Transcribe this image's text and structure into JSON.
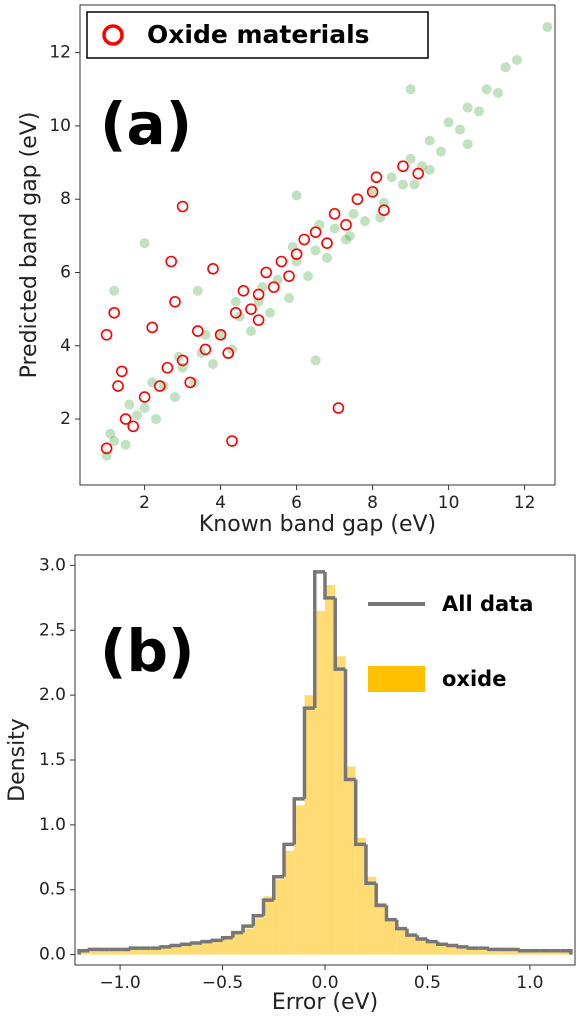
{
  "chart_data": [
    {
      "type": "scatter",
      "annotation": "(a)",
      "xlabel": "Known band gap (eV)",
      "ylabel": "Predicted band gap (eV)",
      "xlim": [
        0.3,
        12.8
      ],
      "ylim": [
        0.2,
        13.3
      ],
      "xticks": [
        2,
        4,
        6,
        8,
        10,
        12
      ],
      "yticks": [
        2,
        4,
        6,
        8,
        10,
        12
      ],
      "legend": "upper left",
      "series": [
        {
          "color": "#2e9e2e",
          "marker": "filled",
          "x": [
            1.0,
            1.2,
            1.5,
            1.8,
            2.0,
            2.3,
            2.5,
            2.8,
            3.0,
            3.3,
            3.5,
            3.8,
            4.0,
            4.3,
            4.5,
            4.8,
            5.0,
            5.3,
            5.5,
            5.8,
            6.0,
            6.3,
            6.5,
            6.8,
            7.0,
            7.3,
            7.5,
            7.8,
            8.0,
            8.3,
            8.5,
            8.8,
            9.0,
            9.3,
            9.5,
            9.8,
            10.0,
            10.3,
            10.5,
            10.8,
            11.0,
            11.3,
            11.5,
            11.8,
            12.6,
            1.1,
            1.6,
            2.2,
            2.9,
            3.6,
            4.4,
            5.1,
            5.9,
            6.6,
            7.4,
            8.2,
            9.1,
            2.0,
            3.4,
            9.0,
            9.5,
            10.5,
            6.5,
            6.0,
            1.2
          ],
          "y": [
            1.0,
            1.4,
            1.3,
            2.1,
            2.3,
            2.0,
            2.9,
            2.6,
            3.4,
            3.0,
            3.8,
            3.5,
            4.3,
            3.9,
            4.8,
            4.4,
            5.2,
            4.9,
            5.8,
            5.3,
            6.3,
            5.9,
            6.6,
            6.4,
            7.2,
            6.9,
            7.6,
            7.4,
            8.2,
            7.9,
            8.6,
            8.4,
            9.1,
            8.9,
            9.6,
            9.3,
            10.1,
            9.9,
            10.5,
            10.4,
            11.0,
            10.9,
            11.6,
            11.8,
            12.7,
            1.6,
            2.4,
            3.0,
            3.7,
            4.3,
            5.2,
            5.6,
            6.7,
            7.3,
            7.0,
            7.5,
            8.4,
            6.8,
            5.5,
            11.0,
            8.8,
            9.5,
            3.6,
            8.1,
            5.5
          ]
        },
        {
          "name": "Oxide materials",
          "color": "#ff0000",
          "marker": "hollow",
          "x": [
            1.0,
            1.2,
            1.4,
            1.5,
            1.7,
            2.0,
            2.2,
            2.4,
            2.6,
            2.8,
            3.0,
            3.2,
            3.4,
            3.6,
            3.8,
            4.0,
            4.2,
            4.4,
            4.6,
            4.8,
            5.0,
            5.2,
            5.4,
            5.6,
            5.8,
            6.0,
            6.2,
            6.5,
            6.8,
            7.0,
            7.3,
            7.6,
            8.0,
            8.3,
            8.8,
            9.2,
            1.0,
            1.3,
            2.7,
            4.3,
            7.1,
            3.0,
            5.0,
            8.1
          ],
          "y": [
            1.2,
            4.9,
            3.3,
            2.0,
            1.8,
            2.6,
            4.5,
            2.9,
            3.4,
            5.2,
            3.6,
            3.0,
            4.4,
            3.9,
            6.1,
            4.3,
            3.8,
            4.9,
            5.5,
            5.0,
            5.4,
            6.0,
            5.6,
            6.3,
            5.9,
            6.5,
            6.9,
            7.1,
            6.8,
            7.6,
            7.3,
            8.0,
            8.2,
            7.7,
            8.9,
            8.7,
            4.3,
            2.9,
            6.3,
            1.4,
            2.3,
            7.8,
            4.7,
            8.6
          ]
        }
      ]
    },
    {
      "type": "histogram",
      "annotation": "(b)",
      "xlabel": "Error (eV)",
      "ylabel": "Density",
      "xlim": [
        -1.22,
        1.22
      ],
      "ylim": [
        -0.08,
        3.08
      ],
      "xticks": [
        {
          "value": -1,
          "label": "−1.0"
        },
        {
          "value": -0.5,
          "label": "−0.5"
        },
        {
          "value": 0,
          "label": "0.0"
        },
        0.5,
        {
          "value": 1,
          "label": "1.0"
        }
      ],
      "yticks": [
        {
          "value": 0,
          "label": "0.0"
        },
        0.5,
        {
          "value": 1,
          "label": "1.0"
        },
        1.5,
        {
          "value": 2,
          "label": "2.0"
        },
        2.5,
        {
          "value": 3,
          "label": "3.0"
        }
      ],
      "legend": "upper right",
      "bins": [
        -1.2,
        -1.15,
        -1.1,
        -1.05,
        -1.0,
        -0.95,
        -0.9,
        -0.85,
        -0.8,
        -0.75,
        -0.7,
        -0.65,
        -0.6,
        -0.55,
        -0.5,
        -0.45,
        -0.4,
        -0.35,
        -0.3,
        -0.25,
        -0.2,
        -0.15,
        -0.1,
        -0.05,
        0.0,
        0.05,
        0.1,
        0.15,
        0.2,
        0.25,
        0.3,
        0.35,
        0.4,
        0.45,
        0.5,
        0.55,
        0.6,
        0.65,
        0.7,
        0.75,
        0.8,
        0.85,
        0.9,
        0.95,
        1.0,
        1.05,
        1.1,
        1.15,
        1.2
      ],
      "series": [
        {
          "name": "All data",
          "color": "#777777",
          "style": "step",
          "values": [
            0.03,
            0.04,
            0.04,
            0.04,
            0.04,
            0.05,
            0.05,
            0.05,
            0.06,
            0.07,
            0.08,
            0.09,
            0.1,
            0.11,
            0.13,
            0.17,
            0.22,
            0.3,
            0.42,
            0.6,
            0.85,
            1.2,
            1.9,
            2.95,
            2.75,
            2.2,
            1.35,
            0.85,
            0.55,
            0.38,
            0.27,
            0.2,
            0.15,
            0.12,
            0.1,
            0.08,
            0.07,
            0.06,
            0.05,
            0.05,
            0.04,
            0.04,
            0.04,
            0.03,
            0.03,
            0.03,
            0.03,
            0.03
          ]
        },
        {
          "name": "oxide",
          "color": "#ffc000",
          "style": "filled",
          "values": [
            0.02,
            0.03,
            0.04,
            0.03,
            0.04,
            0.05,
            0.04,
            0.06,
            0.06,
            0.07,
            0.08,
            0.08,
            0.1,
            0.12,
            0.13,
            0.16,
            0.2,
            0.28,
            0.45,
            0.58,
            0.8,
            1.15,
            2.0,
            2.65,
            2.85,
            2.3,
            1.45,
            0.9,
            0.6,
            0.4,
            0.28,
            0.2,
            0.15,
            0.11,
            0.1,
            0.07,
            0.07,
            0.06,
            0.05,
            0.04,
            0.04,
            0.05,
            0.04,
            0.03,
            0.04,
            0.03,
            0.02,
            0.03
          ]
        }
      ]
    }
  ]
}
